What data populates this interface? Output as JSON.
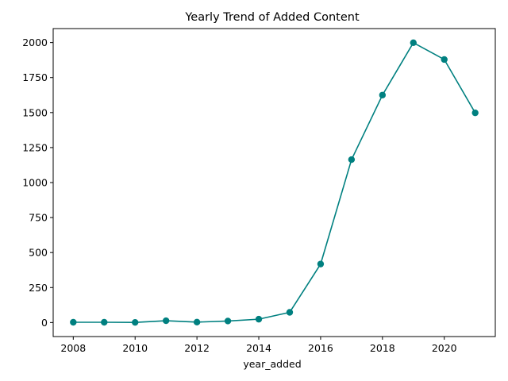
{
  "chart_data": {
    "type": "line",
    "title": "Yearly Trend of Added Content",
    "xlabel": "year_added",
    "ylabel": "",
    "x": [
      2008,
      2009,
      2010,
      2011,
      2012,
      2013,
      2014,
      2015,
      2016,
      2017,
      2018,
      2019,
      2020,
      2021
    ],
    "series": [
      {
        "values": [
          2,
          2,
          1,
          13,
          3,
          11,
          24,
          73,
          418,
          1164,
          1625,
          1999,
          1879,
          1498
        ],
        "color": "#008080",
        "marker": "circle"
      }
    ],
    "xlim": [
      2007.35,
      2021.65
    ],
    "ylim": [
      -100,
      2100
    ],
    "xticks": [
      "2008",
      "2010",
      "2012",
      "2014",
      "2016",
      "2018",
      "2020"
    ],
    "yticks": [
      "0",
      "250",
      "500",
      "750",
      "1000",
      "1250",
      "1500",
      "1750",
      "2000"
    ],
    "grid": false,
    "legend": "none"
  }
}
